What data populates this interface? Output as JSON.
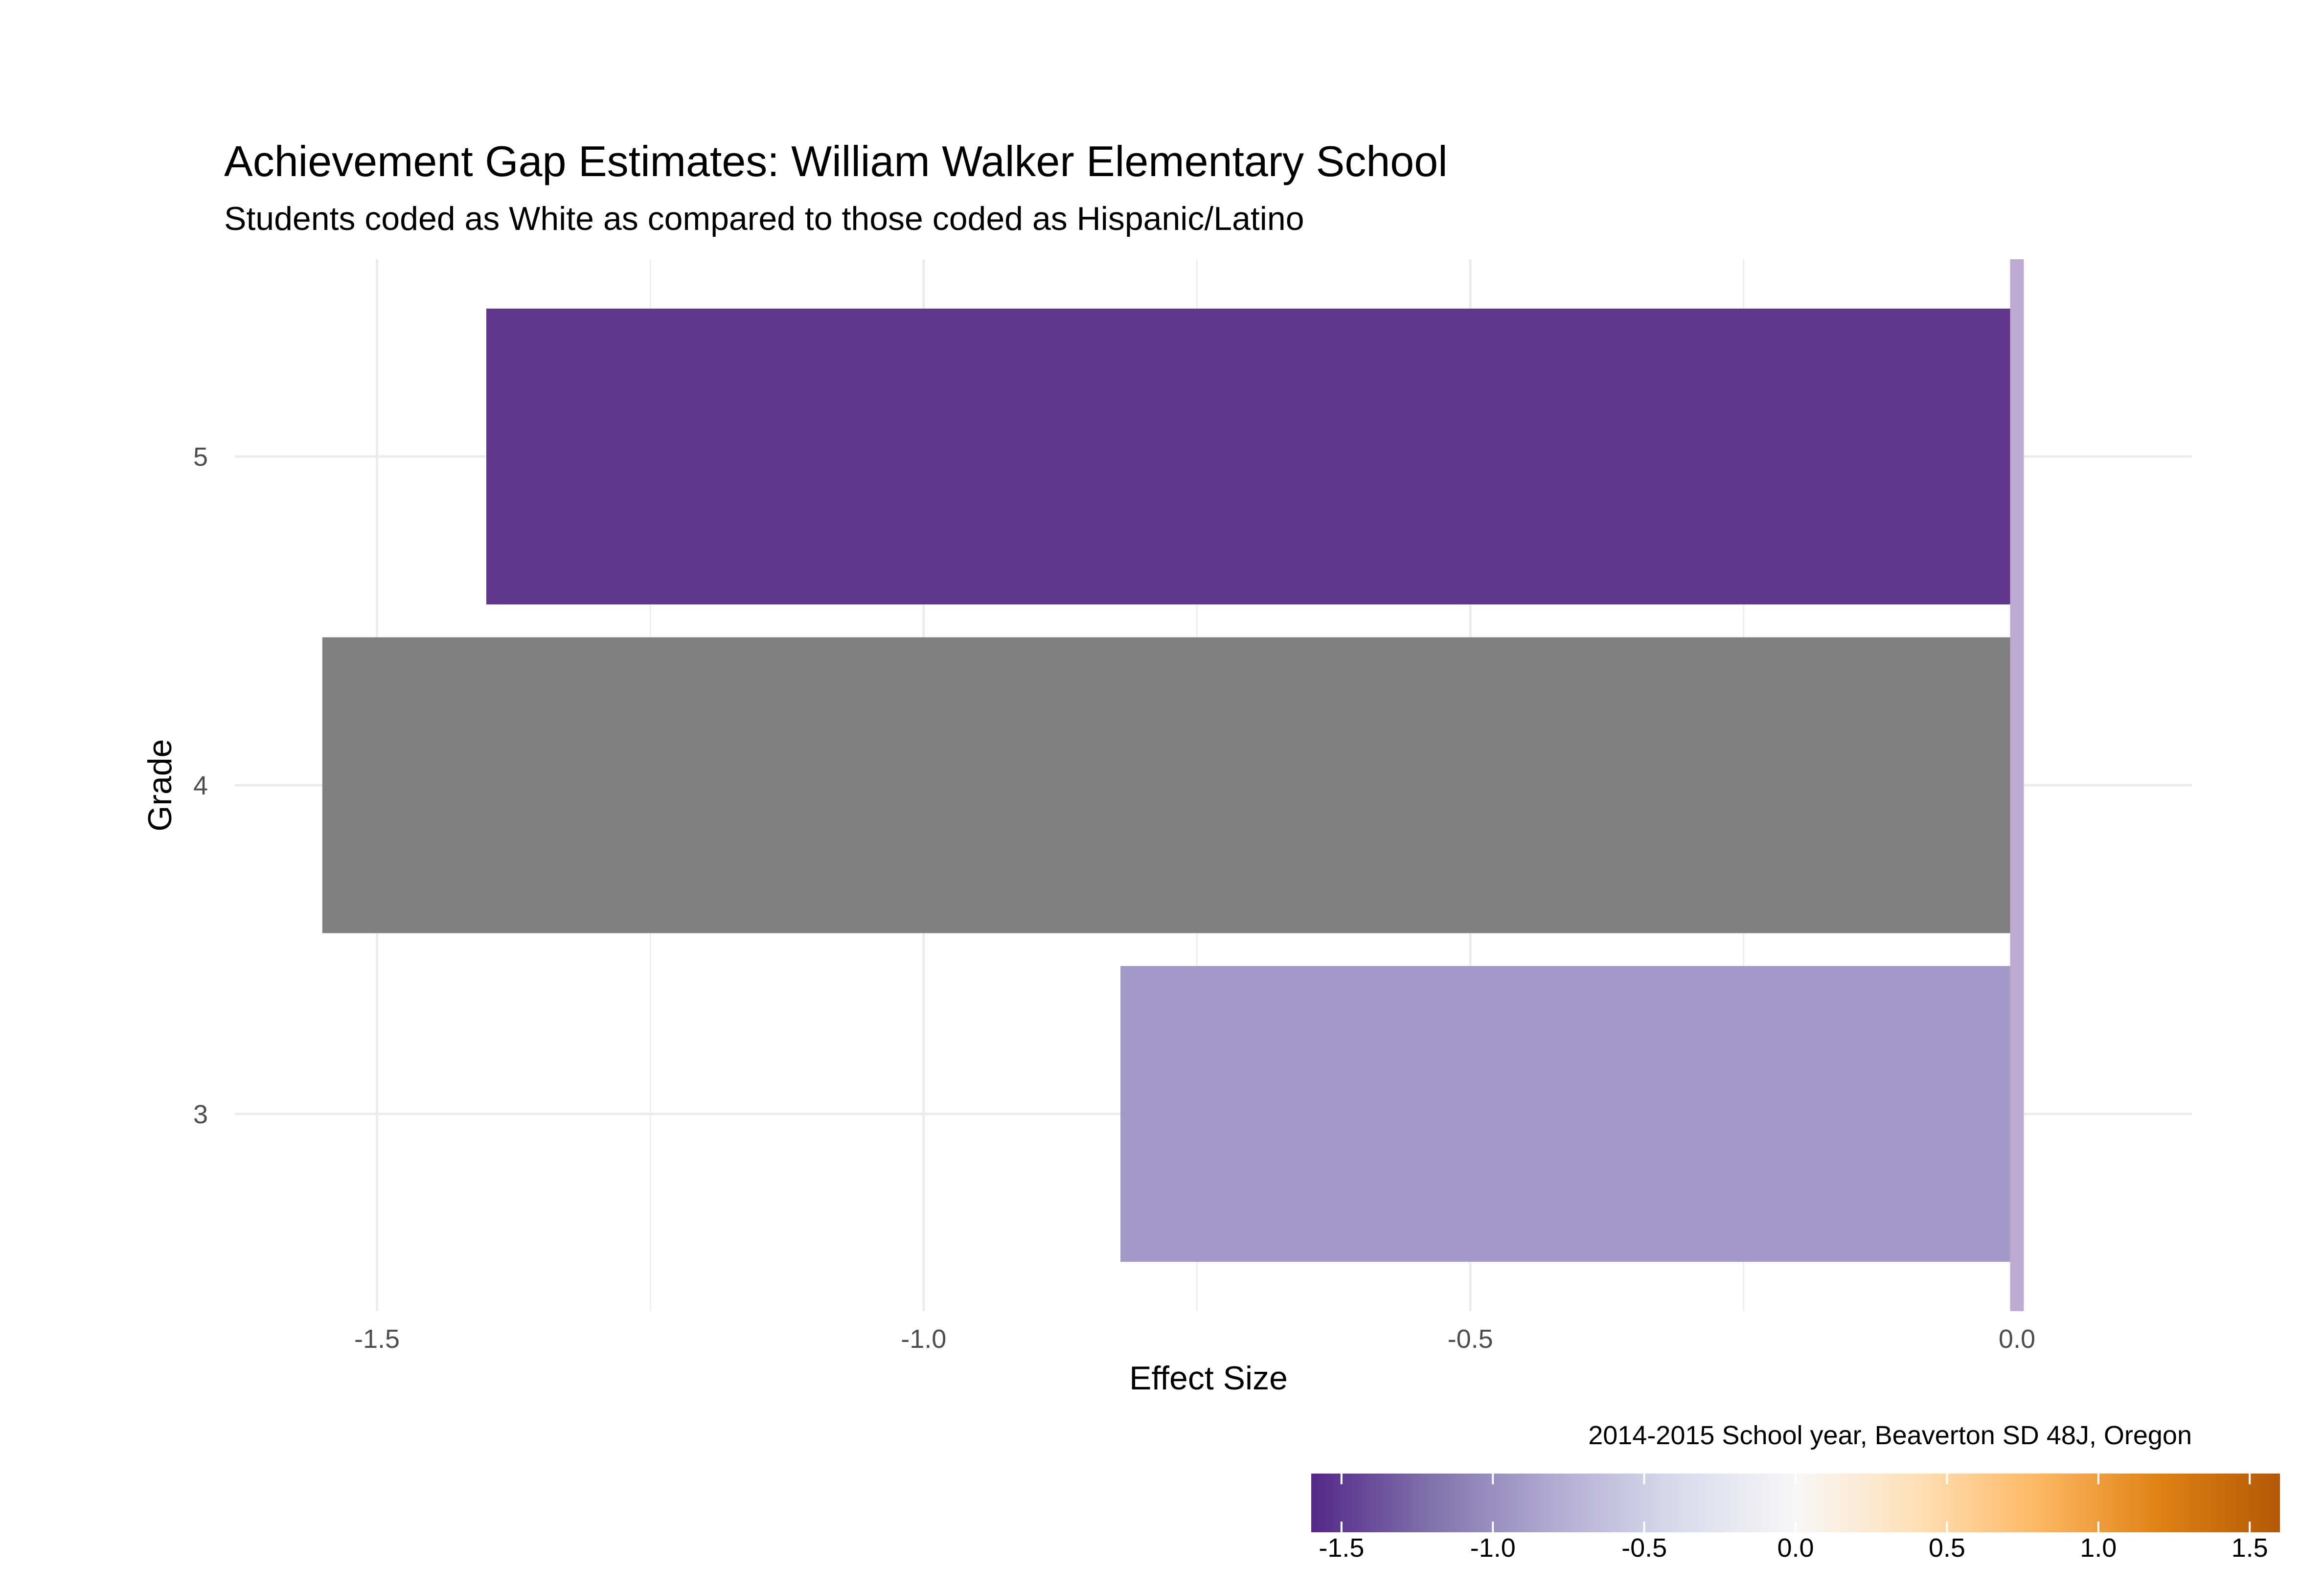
{
  "chart_data": {
    "type": "bar",
    "orientation": "horizontal",
    "title": "Achievement Gap Estimates: William Walker Elementary School",
    "subtitle": "Students coded as White as compared to those coded as Hispanic/Latino",
    "xlabel": "Effect Size",
    "ylabel": "Grade",
    "caption": "2014-2015 School year, Beaverton SD 48J, Oregon",
    "categories": [
      "3",
      "4",
      "5"
    ],
    "values": [
      -0.82,
      -1.55,
      -1.4
    ],
    "bar_colors": [
      "#a299c9",
      "#808080",
      "#60378d"
    ],
    "reference_line": {
      "x": 0.0,
      "color": "#bcaad2"
    },
    "xlim": [
      -1.63,
      0.16
    ],
    "x_ticks": [
      {
        "value": -1.5,
        "label": "-1.5"
      },
      {
        "value": -1.0,
        "label": "-1.0"
      },
      {
        "value": -0.5,
        "label": "-0.5"
      },
      {
        "value": 0.0,
        "label": "0.0"
      }
    ],
    "x_minor_ticks": [
      -1.25,
      -0.75,
      -0.25
    ],
    "grid": true,
    "legend": {
      "type": "colorbar",
      "placement": "bottom-right",
      "range": [
        -1.6,
        1.6
      ],
      "gradient_colors": [
        "#542788",
        "#8073ac",
        "#b2abd2",
        "#d8daeb",
        "#f7f7f7",
        "#fee0b6",
        "#fdb863",
        "#e08214",
        "#b35806"
      ],
      "ticks": [
        {
          "value": -1.5,
          "label": "-1.5"
        },
        {
          "value": -1.0,
          "label": "-1.0"
        },
        {
          "value": -0.5,
          "label": "-0.5"
        },
        {
          "value": 0.0,
          "label": "0.0"
        },
        {
          "value": 0.5,
          "label": "0.5"
        },
        {
          "value": 1.0,
          "label": "1.0"
        },
        {
          "value": 1.5,
          "label": "1.5"
        }
      ]
    }
  }
}
